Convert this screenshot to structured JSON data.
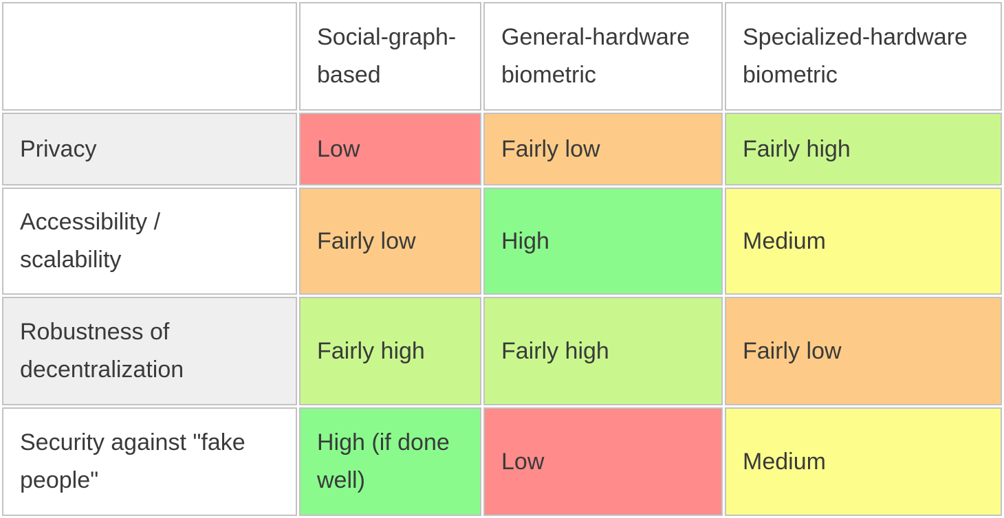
{
  "palette": {
    "low": "#ff8b8b",
    "fairly_low": "#fdcb87",
    "medium": "#fdfd8c",
    "fairly_high": "#c9f78e",
    "high": "#8afa8d",
    "row_stripe": "#efefef",
    "cell_border": "#c2c2c2",
    "text": "#3a3a3a"
  },
  "table": {
    "headers": [
      "",
      "Social-graph-based",
      "General-hardware biometric",
      "Specialized-hardware biometric"
    ],
    "rows": [
      {
        "label": "Privacy",
        "cells": [
          {
            "text": "Low",
            "level": "low",
            "bg": "#ff8b8b"
          },
          {
            "text": "Fairly low",
            "level": "fairly_low",
            "bg": "#fdcb87"
          },
          {
            "text": "Fairly high",
            "level": "fairly_high",
            "bg": "#c9f78e"
          }
        ]
      },
      {
        "label": "Accessibility / scalability",
        "cells": [
          {
            "text": "Fairly low",
            "level": "fairly_low",
            "bg": "#fdcb87"
          },
          {
            "text": "High",
            "level": "high",
            "bg": "#8afa8d"
          },
          {
            "text": "Medium",
            "level": "medium",
            "bg": "#fdfd8c"
          }
        ]
      },
      {
        "label": "Robustness of decentralization",
        "cells": [
          {
            "text": "Fairly high",
            "level": "fairly_high",
            "bg": "#c9f78e"
          },
          {
            "text": "Fairly high",
            "level": "fairly_high",
            "bg": "#c9f78e"
          },
          {
            "text": "Fairly low",
            "level": "fairly_low",
            "bg": "#fdcb87"
          }
        ]
      },
      {
        "label": "Security against \"fake people\"",
        "cells": [
          {
            "text": "High (if done well)",
            "level": "high",
            "bg": "#8afa8d"
          },
          {
            "text": "Low",
            "level": "low",
            "bg": "#ff8b8b"
          },
          {
            "text": "Medium",
            "level": "medium",
            "bg": "#fdfd8c"
          }
        ]
      }
    ]
  }
}
